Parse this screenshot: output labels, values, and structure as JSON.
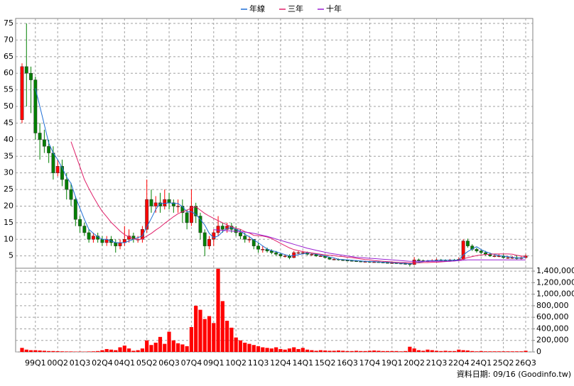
{
  "chart_data": [
    {
      "type": "candlestick",
      "open": [
        46,
        62,
        60,
        58,
        42,
        40,
        38,
        36,
        30,
        32,
        28,
        25,
        22,
        16,
        14,
        12,
        10,
        11,
        10,
        9,
        10,
        9,
        8,
        9,
        10,
        11,
        10,
        10,
        13,
        22,
        20,
        21,
        20,
        22,
        21,
        20,
        20,
        18,
        15,
        20,
        17,
        12,
        8,
        10,
        12,
        14,
        13,
        14,
        13,
        12,
        11,
        10,
        10,
        8,
        7,
        7,
        6.5,
        6,
        5.5,
        5,
        5,
        4.5,
        6,
        6,
        6,
        5.5,
        5.5,
        5,
        5,
        4.5,
        4,
        4,
        3.8,
        3.7,
        3.6,
        3.5,
        3.4,
        3.3,
        3.3,
        3.2,
        3.2,
        3.1,
        3,
        2.9,
        2.9,
        2.8,
        2.7,
        2.6,
        2.4,
        3.8,
        3.6,
        3.5,
        3.5,
        3.6,
        3.8,
        3.7,
        3.6,
        3.8,
        3.7,
        4,
        9.5,
        8,
        7,
        6.5,
        6,
        5.5,
        5,
        5,
        5,
        4.5,
        4.5,
        4.5,
        4.2,
        4.5
      ],
      "high": [
        63,
        75,
        62,
        59,
        45,
        43,
        40,
        38,
        34,
        34,
        30,
        27,
        23,
        17,
        15,
        13,
        12,
        12,
        11,
        11,
        11,
        10,
        10,
        14,
        13,
        12,
        11,
        14,
        28,
        25,
        23,
        24,
        25,
        24,
        22,
        22,
        22,
        19,
        25,
        21,
        18,
        13,
        11,
        13,
        17,
        15,
        15,
        15,
        14,
        13,
        12,
        11,
        10,
        9,
        8,
        7.5,
        7,
        6.5,
        6,
        5.5,
        5.5,
        6.5,
        6.5,
        6.5,
        6.3,
        6,
        5.8,
        5.3,
        5.2,
        4.8,
        4.3,
        4.2,
        4,
        3.9,
        3.8,
        3.7,
        3.6,
        3.5,
        3.5,
        3.4,
        3.4,
        3.3,
        3.2,
        3.1,
        3.1,
        3,
        2.9,
        2.8,
        4.6,
        4.2,
        3.9,
        3.8,
        4,
        4.2,
        4.1,
        4,
        4.1,
        4.1,
        4.5,
        10,
        10.2,
        8.5,
        7.5,
        7,
        6.5,
        6,
        5.6,
        5.6,
        5.5,
        5,
        5,
        5.2,
        4.9,
        5.5
      ],
      "low": [
        45,
        50,
        48,
        40,
        34,
        36,
        33,
        28,
        29,
        26,
        22,
        20,
        14,
        12,
        11,
        9,
        9,
        9,
        8,
        8,
        8,
        6,
        7,
        8,
        9,
        9,
        9,
        9,
        12,
        18,
        18,
        18,
        19,
        19,
        18,
        18,
        15,
        13,
        14,
        15,
        10,
        5,
        7,
        8,
        11,
        12,
        12,
        12,
        11,
        10,
        9,
        9,
        7,
        6,
        6,
        6,
        5.5,
        5,
        4.5,
        4.5,
        4,
        4.3,
        5.5,
        5.5,
        5.2,
        5,
        4.7,
        4.7,
        4.3,
        3.8,
        3.7,
        3.6,
        3.5,
        3.4,
        3.3,
        3.2,
        3.1,
        3.1,
        3,
        3,
        2.9,
        2.8,
        2.7,
        2.7,
        2.6,
        2.5,
        2.4,
        1.8,
        2.3,
        3.3,
        3.2,
        3.2,
        3.3,
        3.4,
        3.4,
        3.3,
        3.4,
        3.4,
        3.5,
        3.8,
        7.5,
        6.5,
        6,
        5.6,
        5.1,
        4.7,
        4.6,
        4.6,
        4.2,
        4.1,
        4.1,
        3.9,
        3.9,
        4.2
      ],
      "close": [
        62,
        60,
        58,
        42,
        40,
        38,
        36,
        30,
        32,
        28,
        25,
        22,
        16,
        14,
        12,
        10,
        11,
        10,
        9,
        10,
        9,
        8,
        9,
        10,
        11,
        10,
        10,
        13,
        22,
        20,
        21,
        20,
        22,
        21,
        20,
        20,
        18,
        15,
        20,
        17,
        12,
        8,
        10,
        12,
        14,
        13,
        14,
        13,
        12,
        11,
        10,
        10,
        8,
        7,
        7,
        6.5,
        6,
        5.5,
        5,
        5,
        4.5,
        6,
        6,
        6,
        5.5,
        5.5,
        5,
        5,
        4.5,
        4,
        4,
        3.8,
        3.7,
        3.6,
        3.5,
        3.4,
        3.3,
        3.3,
        3.2,
        3.2,
        3.1,
        3,
        2.9,
        2.9,
        2.8,
        2.7,
        2.6,
        2.4,
        3.8,
        3.6,
        3.5,
        3.5,
        3.6,
        3.8,
        3.7,
        3.6,
        3.8,
        3.7,
        4,
        9.5,
        8,
        7,
        6.5,
        6,
        5.5,
        5,
        5,
        5,
        4.5,
        4.5,
        4.5,
        4.2,
        4.5,
        5
      ],
      "up_color": "#ff0000",
      "down_color": "#008000",
      "ylim": [
        1.3,
        76.5
      ],
      "yticks": [
        5,
        10,
        15,
        20,
        25,
        30,
        35,
        40,
        45,
        50,
        55,
        60,
        65,
        70,
        75
      ],
      "grid": true,
      "legend": "top",
      "series": [
        {
          "name": "年線",
          "color": "#1f6fd6",
          "values": [
            null,
            null,
            null,
            55.5,
            50,
            44.5,
            39,
            36,
            34,
            31.5,
            28.8,
            26.8,
            22.8,
            19.3,
            16,
            13,
            11.8,
            10.8,
            10,
            10,
            9.5,
            9,
            9,
            9,
            9.5,
            10,
            10.5,
            11,
            13.8,
            16.3,
            19,
            20.8,
            20.8,
            21,
            20.8,
            20.8,
            19.8,
            18.3,
            18.3,
            17.5,
            16,
            14.3,
            11.8,
            10.5,
            11,
            12.3,
            13.3,
            13.5,
            13,
            12.5,
            11.5,
            10.8,
            9.8,
            9,
            8,
            7.1,
            6.6,
            6.3,
            5.8,
            5.4,
            5,
            5.1,
            5.4,
            5.6,
            5.9,
            5.8,
            5.5,
            5.3,
            5,
            4.6,
            4.4,
            4,
            3.9,
            3.8,
            3.7,
            3.6,
            3.5,
            3.4,
            3.3,
            3.3,
            3.2,
            3.1,
            3.1,
            3,
            2.9,
            2.8,
            2.8,
            2.6,
            2.9,
            3.1,
            3.3,
            3.6,
            3.6,
            3.6,
            3.7,
            3.7,
            3.7,
            3.7,
            3.8,
            5.3,
            6.3,
            7.1,
            7.8,
            6.9,
            6.3,
            5.8,
            5.4,
            5.1,
            4.9,
            4.8,
            4.6,
            4.4,
            4.4,
            4.6
          ]
        },
        {
          "name": "三年",
          "color": "#e0206a",
          "values": [
            null,
            null,
            null,
            null,
            null,
            null,
            null,
            null,
            null,
            null,
            null,
            39.4,
            35.6,
            31.8,
            28,
            25.3,
            22.8,
            20.5,
            18.4,
            16.8,
            15.1,
            13.8,
            12.5,
            11.4,
            10.7,
            10.2,
            9.9,
            10.1,
            11,
            11.8,
            12.8,
            13.7,
            14.8,
            15.8,
            16.8,
            17.7,
            18.3,
            18.7,
            19.5,
            19.8,
            18.8,
            17.8,
            17,
            16.3,
            15.6,
            15,
            14.3,
            13.8,
            13.3,
            13,
            12.3,
            11.9,
            11.2,
            11.1,
            11,
            10.7,
            10.2,
            9.5,
            8.8,
            8.1,
            7.4,
            6.9,
            6.6,
            6.3,
            6.1,
            5.9,
            5.7,
            5.5,
            5.3,
            5.2,
            5.1,
            4.9,
            4.8,
            4.6,
            4.5,
            4.3,
            4.1,
            3.9,
            3.8,
            3.6,
            3.5,
            3.4,
            3.3,
            3.2,
            3.1,
            3,
            3,
            2.9,
            2.9,
            2.9,
            3,
            3,
            3.1,
            3.1,
            3.2,
            3.3,
            3.4,
            3.5,
            3.6,
            4.1,
            4.5,
            4.8,
            5.1,
            5.3,
            5.4,
            5.5,
            5.6,
            5.6,
            5.6,
            5.6,
            5.5,
            5.2,
            5,
            4.8
          ]
        },
        {
          "name": "十年",
          "color": "#9a1fd0",
          "values": [
            null,
            null,
            null,
            null,
            null,
            null,
            null,
            null,
            null,
            null,
            null,
            null,
            null,
            null,
            null,
            null,
            null,
            null,
            null,
            null,
            null,
            null,
            null,
            null,
            null,
            null,
            null,
            null,
            null,
            null,
            null,
            null,
            null,
            null,
            null,
            null,
            null,
            null,
            null,
            null,
            null,
            null,
            null,
            12.9,
            12.8,
            12.7,
            12.6,
            12.5,
            12.4,
            12.3,
            12.2,
            12,
            11.8,
            11.5,
            11.2,
            10.9,
            10.5,
            10.1,
            9.7,
            9.3,
            8.9,
            8.5,
            8.1,
            7.7,
            7.3,
            7,
            6.7,
            6.4,
            6.1,
            5.8,
            5.6,
            5.4,
            5.2,
            5,
            4.8,
            4.6,
            4.5,
            4.4,
            4.3,
            4.2,
            4.1,
            4,
            3.9,
            3.8,
            3.7,
            3.6,
            3.5,
            3.4,
            3.4,
            3.4,
            3.4,
            3.4,
            3.4,
            3.4,
            3.4,
            3.4,
            3.4,
            3.5,
            3.6,
            3.7,
            3.8,
            3.8,
            3.8,
            3.8,
            3.8,
            3.8,
            3.8,
            3.8,
            3.8,
            3.8,
            3.8,
            3.8,
            3.8,
            3.8
          ]
        }
      ]
    },
    {
      "type": "bar",
      "categories": [
        null,
        null,
        null,
        "99Q1",
        null,
        null,
        null,
        null,
        "00Q2",
        null,
        null,
        null,
        null,
        "01Q3",
        null,
        null,
        null,
        null,
        "02Q4",
        null,
        null,
        null,
        null,
        "04Q1",
        null,
        null,
        null,
        null,
        "05Q2",
        null,
        null,
        null,
        null,
        "06Q3",
        null,
        null,
        null,
        null,
        "07Q4",
        null,
        null,
        null,
        null,
        "09Q1",
        null,
        null,
        null,
        null,
        "10Q2",
        null,
        null,
        null,
        null,
        "11Q3",
        null,
        null,
        null,
        null,
        "12Q4",
        null,
        null,
        null,
        null,
        "14Q1",
        null,
        null,
        null,
        null,
        "15Q2",
        null,
        null,
        null,
        null,
        "16Q3",
        null,
        null,
        null,
        null,
        "17Q4",
        null,
        null,
        null,
        null,
        "19Q1",
        null,
        null,
        null,
        null,
        "20Q2",
        null,
        null,
        null,
        null,
        "21Q3",
        null,
        null,
        null,
        null,
        "22Q4",
        null,
        null,
        null,
        null,
        "24Q1",
        null,
        null,
        null,
        null,
        "25Q2",
        null,
        null,
        null,
        null,
        "26Q3"
      ],
      "values": [
        70000,
        40000,
        30000,
        30000,
        25000,
        20000,
        15000,
        15000,
        12000,
        10000,
        8000,
        8000,
        6000,
        6000,
        5000,
        8000,
        10000,
        15000,
        30000,
        50000,
        40000,
        30000,
        80000,
        110000,
        60000,
        20000,
        30000,
        60000,
        200000,
        120000,
        160000,
        260000,
        140000,
        350000,
        200000,
        150000,
        130000,
        100000,
        430000,
        800000,
        730000,
        570000,
        620000,
        500000,
        1440000,
        880000,
        540000,
        420000,
        250000,
        200000,
        160000,
        140000,
        120000,
        100000,
        80000,
        70000,
        60000,
        80000,
        50000,
        40000,
        60000,
        80000,
        50000,
        70000,
        40000,
        30000,
        20000,
        30000,
        25000,
        20000,
        20000,
        25000,
        20000,
        15000,
        15000,
        20000,
        15000,
        15000,
        20000,
        25000,
        20000,
        15000,
        15000,
        15000,
        15000,
        10000,
        15000,
        90000,
        60000,
        30000,
        20000,
        40000,
        30000,
        20000,
        15000,
        20000,
        15000,
        15000,
        40000,
        30000,
        25000,
        15000,
        10000,
        15000,
        10000,
        10000,
        10000,
        10000,
        10000,
        10000,
        10000,
        10000,
        10000,
        20000
      ],
      "color": "#ff0000",
      "ylim": [
        0,
        1450000
      ],
      "yticks": [
        0,
        {
          "value": 200000,
          "label": "200,000"
        },
        {
          "value": 400000,
          "label": "400,000"
        },
        {
          "value": 600000,
          "label": "600,000"
        },
        {
          "value": 800000,
          "label": "800,000"
        },
        {
          "value": 1000000,
          "label": "1,000,000"
        },
        {
          "value": 1200000,
          "label": "1,200,000"
        },
        {
          "value": 1400000,
          "label": "1,400,000"
        }
      ],
      "grid": true
    }
  ],
  "footer": "資料日期: 09/16 (Goodinfo.tw)"
}
